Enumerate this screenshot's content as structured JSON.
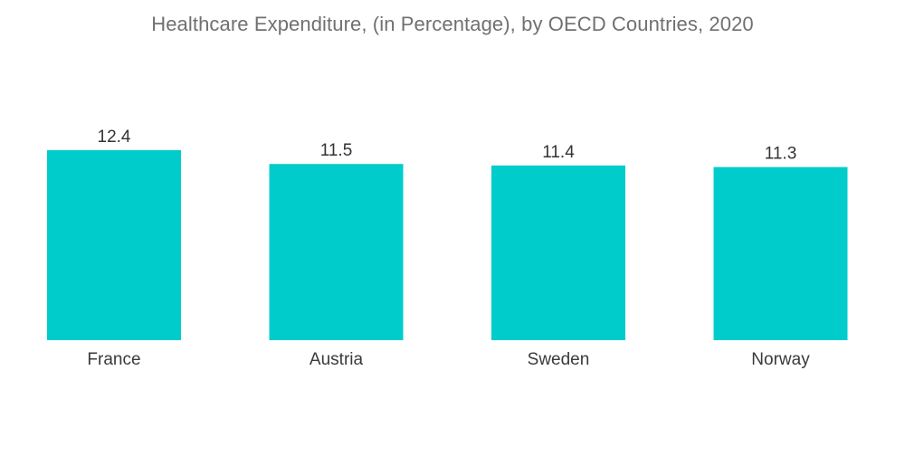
{
  "chart_data": {
    "type": "bar",
    "title": "Healthcare Expenditure, (in Percentage), by OECD Countries, 2020",
    "categories": [
      "France",
      "Austria",
      "Sweden",
      "Norway"
    ],
    "values": [
      12.4,
      11.5,
      11.4,
      11.3
    ],
    "value_labels": [
      "12.4",
      "11.5",
      "11.4",
      "11.3"
    ],
    "xlabel": "",
    "ylabel": "",
    "ylim": [
      0,
      12.4
    ],
    "grid": false,
    "legend": "none",
    "bar_color": "#00CCCC"
  }
}
